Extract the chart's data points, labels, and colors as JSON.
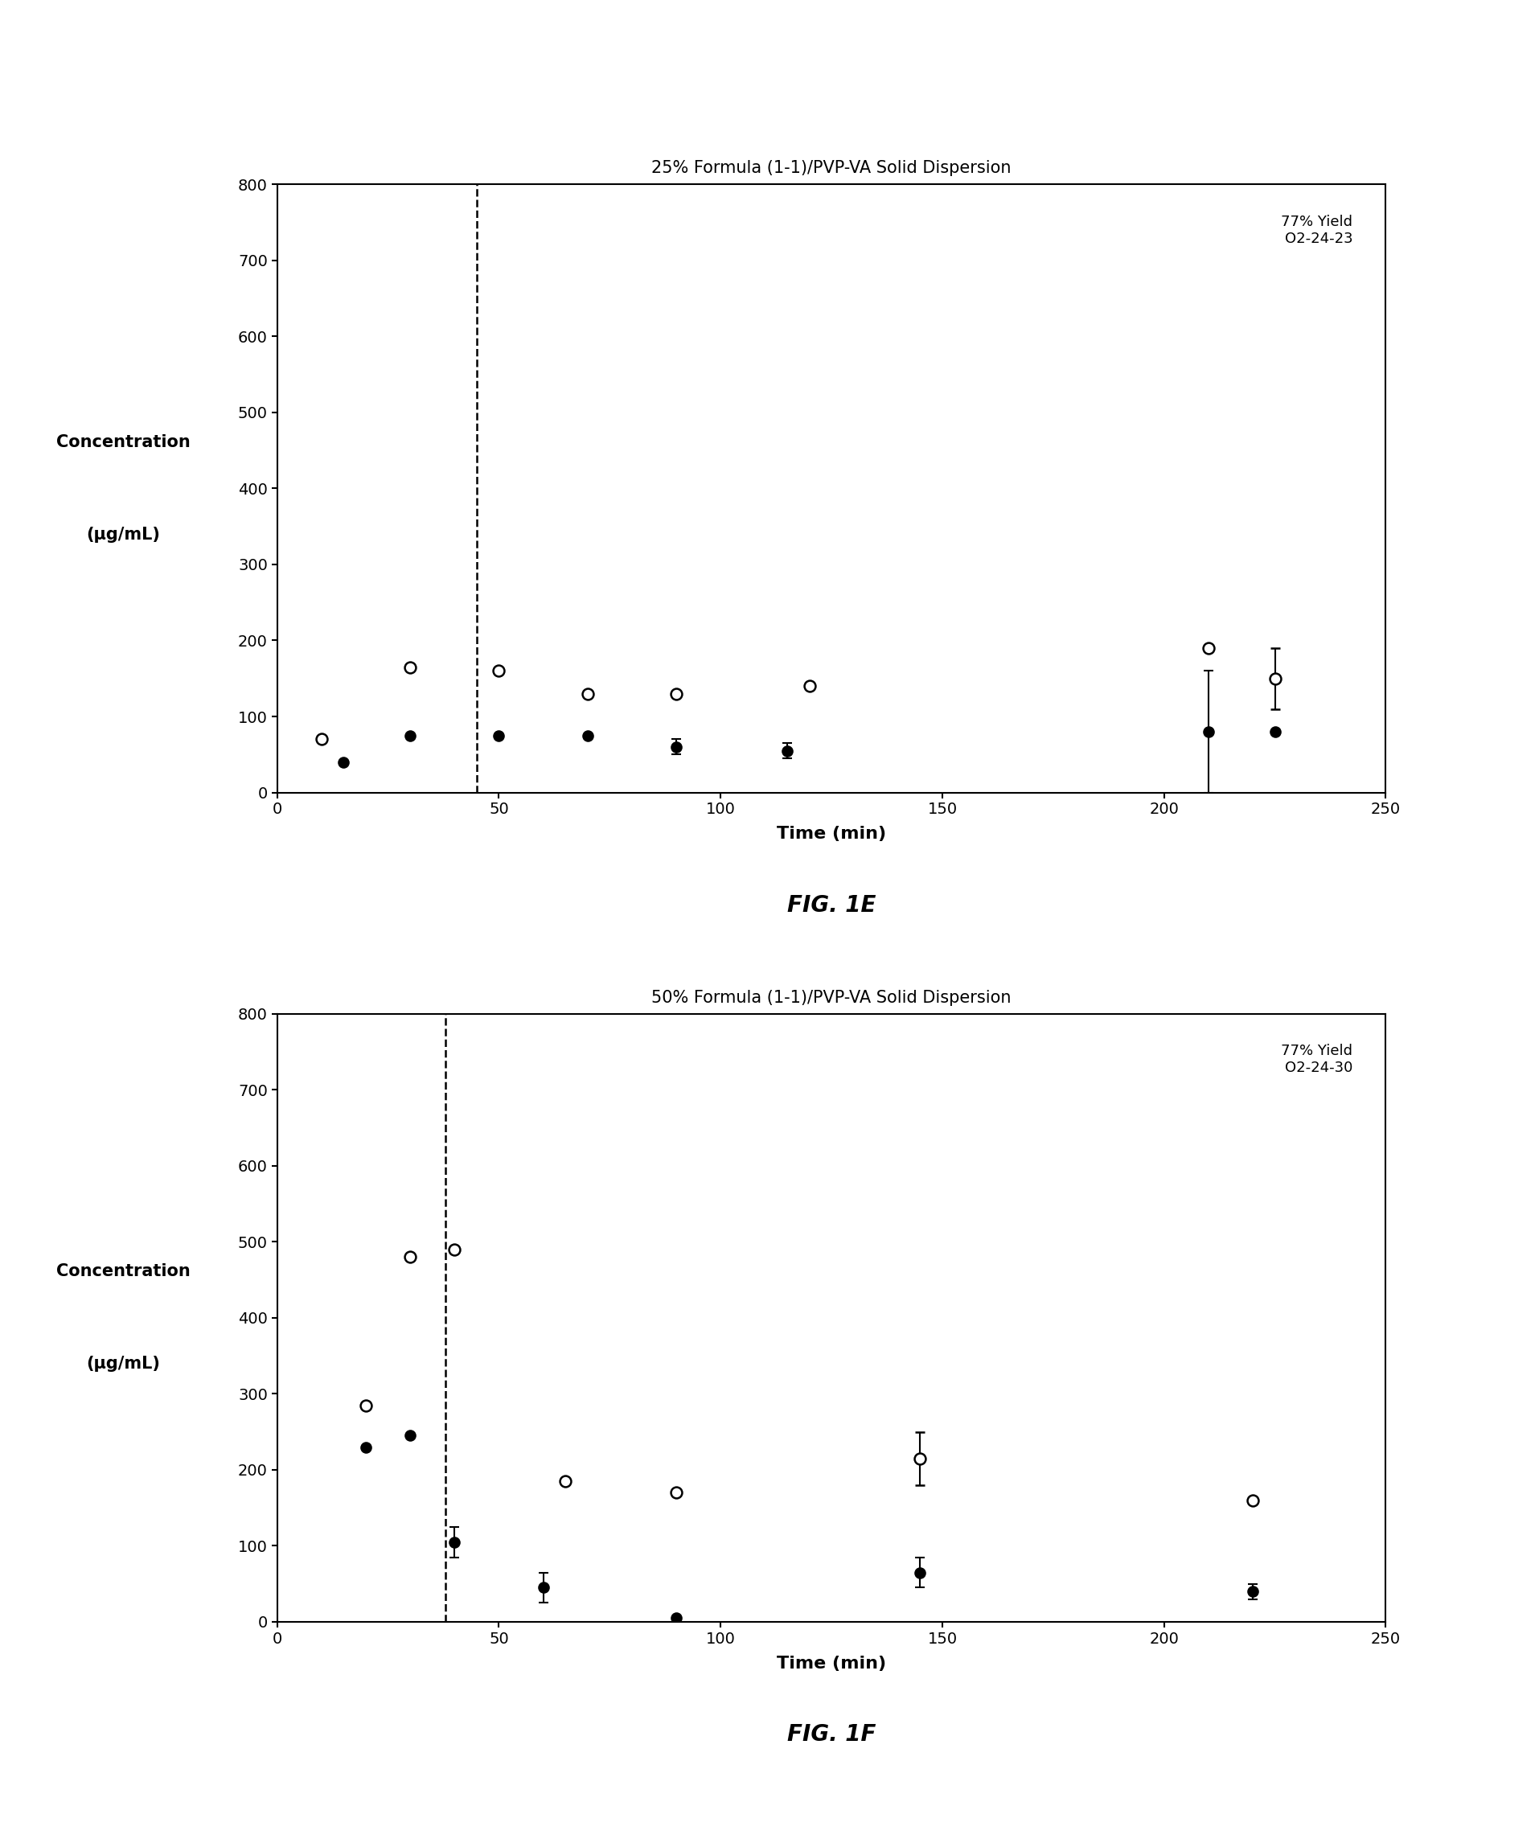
{
  "fig1e": {
    "title": "25% Formula (1-1)/PVP-VA Solid Dispersion",
    "annotation": "77% Yield\nO2-24-23",
    "xlabel": "Time (min)",
    "ylabel_line1": "Concentration",
    "ylabel_line2": "(μg/mL)",
    "figlabel": "FIG. 1E",
    "ylim": [
      0,
      800
    ],
    "xlim": [
      0,
      250
    ],
    "yticks": [
      0,
      100,
      200,
      300,
      400,
      500,
      600,
      700,
      800
    ],
    "xticks": [
      0,
      50,
      100,
      150,
      200,
      250
    ],
    "vline_x": 45,
    "open_x": [
      10,
      30,
      50,
      70,
      90,
      120,
      210,
      225
    ],
    "open_y": [
      70,
      165,
      160,
      130,
      130,
      140,
      190,
      150
    ],
    "open_yerr": [
      0,
      0,
      0,
      0,
      0,
      0,
      0,
      40
    ],
    "filled_x": [
      15,
      30,
      50,
      70,
      90,
      115,
      210,
      225
    ],
    "filled_y": [
      40,
      75,
      75,
      75,
      60,
      55,
      80,
      80
    ],
    "filled_yerr": [
      0,
      0,
      0,
      0,
      10,
      10,
      80,
      0
    ]
  },
  "fig1f": {
    "title": "50% Formula (1-1)/PVP-VA Solid Dispersion",
    "annotation": "77% Yield\nO2-24-30",
    "xlabel": "Time (min)",
    "ylabel_line1": "Concentration",
    "ylabel_line2": "(μg/mL)",
    "figlabel": "FIG. 1F",
    "ylim": [
      0,
      800
    ],
    "xlim": [
      0,
      250
    ],
    "yticks": [
      0,
      100,
      200,
      300,
      400,
      500,
      600,
      700,
      800
    ],
    "xticks": [
      0,
      50,
      100,
      150,
      200,
      250
    ],
    "vline_x": 38,
    "open_x": [
      20,
      30,
      40,
      65,
      90,
      145,
      220
    ],
    "open_y": [
      285,
      480,
      490,
      185,
      170,
      215,
      160
    ],
    "open_yerr": [
      0,
      0,
      0,
      0,
      0,
      35,
      0
    ],
    "filled_x": [
      20,
      30,
      40,
      60,
      90,
      145,
      220
    ],
    "filled_y": [
      230,
      245,
      105,
      45,
      5,
      65,
      40
    ],
    "filled_yerr": [
      0,
      0,
      20,
      20,
      0,
      20,
      10
    ]
  },
  "background_color": "#ffffff",
  "marker_size": 9,
  "font_size": 14
}
